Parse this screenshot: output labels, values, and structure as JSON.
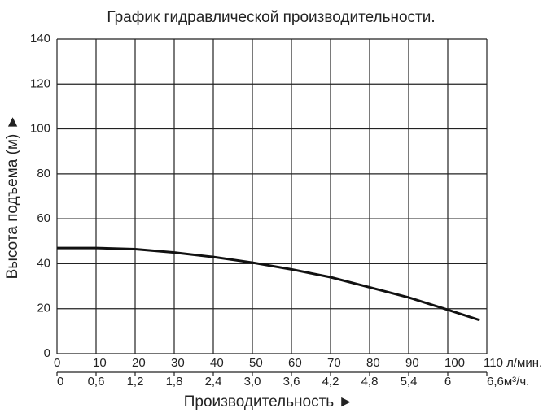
{
  "chart_data": {
    "type": "line",
    "title": "График гидравлической производительности.",
    "y_label": "Высота подъема (м) ►",
    "x_label": "Производительность ►",
    "x": [
      0,
      10,
      20,
      30,
      40,
      50,
      60,
      70,
      80,
      90,
      100,
      108
    ],
    "series": [
      {
        "color": "#111111",
        "values": [
          47,
          47,
          46.5,
          45,
          43,
          40.5,
          37.5,
          34,
          29.5,
          25,
          19.5,
          15
        ]
      }
    ],
    "xlim": [
      0,
      110
    ],
    "xticks": [
      0,
      10,
      20,
      30,
      40,
      50,
      60,
      70,
      80,
      90,
      100,
      {
        "value": 110,
        "label": "110 л/мин."
      }
    ],
    "x2lim": [
      0,
      6.6
    ],
    "x2ticks": [
      0,
      {
        "value": 0.6,
        "label": "0,6"
      },
      {
        "value": 1.2,
        "label": "1,2"
      },
      {
        "value": 1.8,
        "label": "1,8"
      },
      {
        "value": 2.4,
        "label": "2,4"
      },
      {
        "value": 3.0,
        "label": "3,0"
      },
      {
        "value": 3.6,
        "label": "3,6"
      },
      {
        "value": 4.2,
        "label": "4,2"
      },
      {
        "value": 4.8,
        "label": "4,8"
      },
      {
        "value": 5.4,
        "label": "5,4"
      },
      6,
      {
        "value": 6.6,
        "label": "6,6м³/ч."
      }
    ],
    "ylim": [
      0,
      140
    ],
    "yticks": [
      0,
      20,
      40,
      60,
      80,
      100,
      120,
      140
    ],
    "grid": true
  }
}
